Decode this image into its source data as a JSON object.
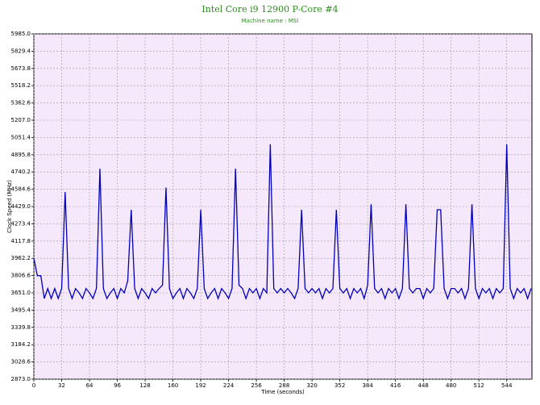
{
  "chart_data": {
    "type": "line",
    "title": "Intel Core i9 12900 P-Core #4",
    "subtitle": "Machine name : MSI",
    "x_label": "Time (seconds)",
    "y_label": "Clock Speed (MHz)",
    "xlim": [
      0,
      573
    ],
    "ylim": [
      2873,
      5985
    ],
    "xticks": [
      0,
      32,
      64,
      96,
      128,
      160,
      192,
      224,
      256,
      288,
      320,
      352,
      384,
      416,
      448,
      480,
      512,
      544
    ],
    "yticks": [
      {
        "value": 2873,
        "label": "2873.0"
      },
      3028.6,
      3184.2,
      3339.8,
      3495.4,
      {
        "value": 3651,
        "label": "3651.0"
      },
      3806.6,
      3962.2,
      4117.8,
      4273.4,
      {
        "value": 4429,
        "label": "4429.0"
      },
      4584.6,
      4740.2,
      4895.8,
      5051.4,
      {
        "value": 5207,
        "label": "5207.0"
      },
      5362.6,
      5518.2,
      5673.8,
      5829.4,
      {
        "value": 5985,
        "label": "5985.0"
      }
    ],
    "grid": true,
    "background": "#f6e8fb",
    "series": [
      {
        "color": "#0000b8",
        "x": [
          0,
          4,
          8,
          12,
          16,
          20,
          24,
          28,
          32,
          36,
          40,
          44,
          48,
          52,
          56,
          60,
          64,
          68,
          72,
          76,
          80,
          84,
          88,
          92,
          96,
          100,
          104,
          108,
          112,
          116,
          120,
          124,
          128,
          132,
          136,
          140,
          144,
          148,
          152,
          156,
          160,
          164,
          168,
          172,
          176,
          180,
          184,
          188,
          192,
          196,
          200,
          204,
          208,
          212,
          216,
          220,
          224,
          228,
          232,
          236,
          240,
          244,
          248,
          252,
          256,
          260,
          264,
          268,
          272,
          276,
          280,
          284,
          288,
          292,
          296,
          300,
          304,
          308,
          312,
          316,
          320,
          324,
          328,
          332,
          336,
          340,
          344,
          348,
          352,
          356,
          360,
          364,
          368,
          372,
          376,
          380,
          384,
          388,
          392,
          396,
          400,
          404,
          408,
          412,
          416,
          420,
          424,
          428,
          432,
          436,
          440,
          444,
          448,
          452,
          456,
          460,
          464,
          468,
          472,
          476,
          480,
          484,
          488,
          492,
          496,
          500,
          504,
          508,
          512,
          516,
          520,
          524,
          528,
          532,
          536,
          540,
          544,
          548,
          552,
          556,
          560,
          564,
          568,
          572
        ],
        "values": [
          3962,
          3806,
          3806,
          3600,
          3690,
          3600,
          3690,
          3600,
          3690,
          4560,
          3690,
          3600,
          3690,
          3651,
          3600,
          3690,
          3651,
          3600,
          3690,
          4770,
          3690,
          3600,
          3651,
          3690,
          3600,
          3690,
          3651,
          3760,
          4400,
          3690,
          3600,
          3690,
          3651,
          3600,
          3690,
          3651,
          3690,
          3720,
          4600,
          3690,
          3600,
          3651,
          3690,
          3600,
          3690,
          3651,
          3600,
          3690,
          4400,
          3690,
          3600,
          3651,
          3690,
          3600,
          3690,
          3651,
          3600,
          3690,
          4770,
          3720,
          3690,
          3600,
          3690,
          3651,
          3690,
          3600,
          3690,
          3651,
          4990,
          3690,
          3651,
          3690,
          3651,
          3690,
          3651,
          3600,
          3690,
          4400,
          3690,
          3651,
          3690,
          3651,
          3690,
          3600,
          3690,
          3651,
          3690,
          4400,
          3690,
          3651,
          3690,
          3600,
          3690,
          3651,
          3690,
          3600,
          3720,
          4450,
          3690,
          3651,
          3690,
          3600,
          3690,
          3651,
          3690,
          3600,
          3690,
          4450,
          3690,
          3651,
          3690,
          3690,
          3600,
          3690,
          3651,
          3690,
          4400,
          4400,
          3690,
          3600,
          3690,
          3690,
          3651,
          3690,
          3600,
          3690,
          4450,
          3690,
          3600,
          3690,
          3651,
          3690,
          3600,
          3690,
          3651,
          3690,
          4990,
          3690,
          3600,
          3690,
          3651,
          3690,
          3600,
          3690
        ]
      }
    ]
  }
}
